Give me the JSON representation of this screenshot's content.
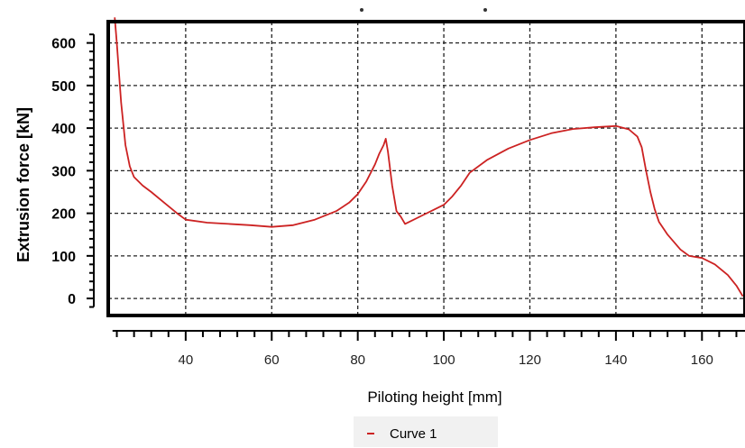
{
  "chart_data": {
    "type": "line",
    "title": "",
    "xlabel": "Piloting height [mm]",
    "ylabel": "Extrusion force [kN]",
    "xlim": [
      22,
      170
    ],
    "ylim": [
      -40,
      650
    ],
    "x_ticks": [
      40,
      60,
      80,
      100,
      120,
      140,
      160
    ],
    "x_tick_labels": [
      "40",
      "60",
      "80",
      "100",
      "120",
      "140",
      "160"
    ],
    "y_ticks": [
      0,
      100,
      200,
      300,
      400,
      500,
      600
    ],
    "y_tick_labels": [
      "0",
      "100",
      "200",
      "300",
      "400",
      "500",
      "600"
    ],
    "grid": true,
    "legend_position": "bottom-center",
    "colors": {
      "series": "#cc2222",
      "grid": "#222222",
      "frame": "#000000"
    },
    "series": [
      {
        "name": "Curve 1",
        "x": [
          23.5,
          24,
          25,
          26,
          27,
          28,
          30,
          32,
          35,
          38,
          40,
          45,
          50,
          55,
          60,
          65,
          70,
          75,
          78,
          80,
          82,
          84,
          85,
          86,
          86.5,
          87,
          88,
          89,
          90,
          91,
          92,
          95,
          98,
          100,
          102,
          104,
          106,
          110,
          115,
          120,
          125,
          130,
          135,
          140,
          143,
          145,
          146,
          147,
          148,
          149,
          150,
          152,
          155,
          157,
          160,
          163,
          166,
          168,
          169.5
        ],
        "y": [
          660,
          600,
          460,
          360,
          310,
          285,
          265,
          250,
          225,
          200,
          185,
          178,
          175,
          172,
          168,
          172,
          185,
          205,
          225,
          245,
          275,
          315,
          340,
          360,
          375,
          345,
          265,
          205,
          192,
          175,
          180,
          195,
          210,
          220,
          240,
          265,
          295,
          325,
          352,
          372,
          388,
          398,
          402,
          405,
          397,
          380,
          355,
          300,
          250,
          210,
          180,
          150,
          115,
          100,
          95,
          80,
          55,
          30,
          5
        ]
      }
    ]
  }
}
